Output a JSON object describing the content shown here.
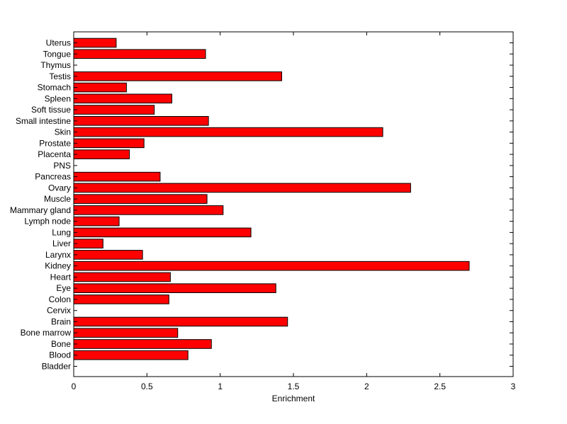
{
  "chart_data": {
    "type": "bar",
    "orientation": "horizontal",
    "categories": [
      "Bladder",
      "Blood",
      "Bone",
      "Bone marrow",
      "Brain",
      "Cervix",
      "Colon",
      "Eye",
      "Heart",
      "Kidney",
      "Larynx",
      "Liver",
      "Lung",
      "Lymph node",
      "Mammary gland",
      "Muscle",
      "Ovary",
      "Pancreas",
      "PNS",
      "Placenta",
      "Prostate",
      "Skin",
      "Small intestine",
      "Soft tissue",
      "Spleen",
      "Stomach",
      "Testis",
      "Thymus",
      "Tongue",
      "Uterus"
    ],
    "values": [
      0,
      0.78,
      0.94,
      0.71,
      1.46,
      0,
      0.65,
      1.38,
      0.66,
      2.7,
      0.47,
      0.2,
      1.21,
      0.31,
      1.02,
      0.91,
      2.3,
      0.59,
      0,
      0.38,
      0.48,
      2.11,
      0.92,
      0.55,
      0.67,
      0.36,
      1.42,
      0,
      0.9,
      0.29
    ],
    "xlabel": "Enrichment",
    "ylabel": "",
    "title": "",
    "xlim": [
      0,
      3
    ],
    "xticks": [
      "0",
      "0.5",
      "1",
      "1.5",
      "2",
      "2.5",
      "3"
    ],
    "bar_color": "#ff0000",
    "grid": false,
    "legend": "none"
  }
}
